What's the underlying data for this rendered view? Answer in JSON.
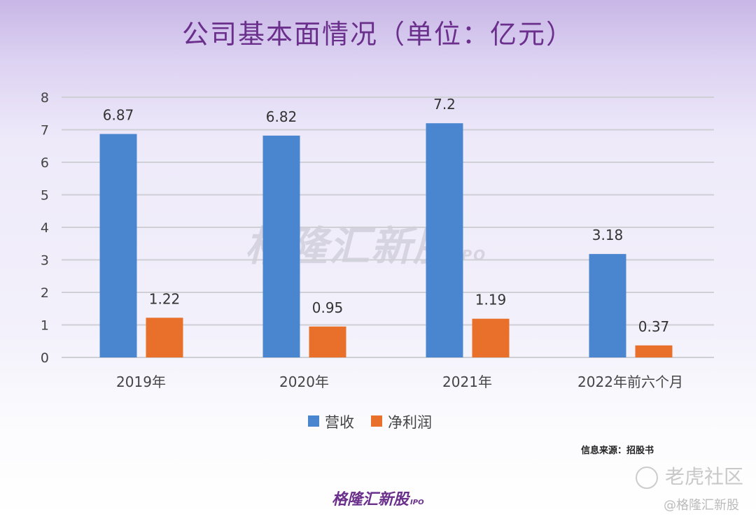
{
  "title": "公司基本面情况（单位：亿元）",
  "chart_data": {
    "type": "bar",
    "title": "公司基本面情况（单位：亿元）",
    "categories": [
      "2019年",
      "2020年",
      "2021年",
      "2022年前六个月"
    ],
    "series": [
      {
        "name": "营收",
        "values": [
          6.87,
          6.82,
          7.2,
          3.18
        ],
        "labels": [
          "6.87",
          "6.82",
          "7.2",
          "3.18"
        ],
        "color": "#4a86d0"
      },
      {
        "name": "净利润",
        "values": [
          1.22,
          0.95,
          1.19,
          0.37
        ],
        "labels": [
          "1.22",
          "0.95",
          "1.19",
          "0.37"
        ],
        "color": "#e8702a"
      }
    ],
    "ylim": [
      0,
      8
    ],
    "yticks": [
      "0",
      "1",
      "2",
      "3",
      "4",
      "5",
      "6",
      "7",
      "8"
    ],
    "grid": true,
    "legend": "bottom-center",
    "xlabel": "",
    "ylabel": ""
  },
  "source": "信息来源：招股书",
  "watermark": {
    "main": "格隆汇新股",
    "sub": "IPO"
  },
  "logo": {
    "main": "格隆汇新股",
    "sub": "IPO"
  },
  "tiger": "老虎社区",
  "handle": "@格隆汇新股"
}
